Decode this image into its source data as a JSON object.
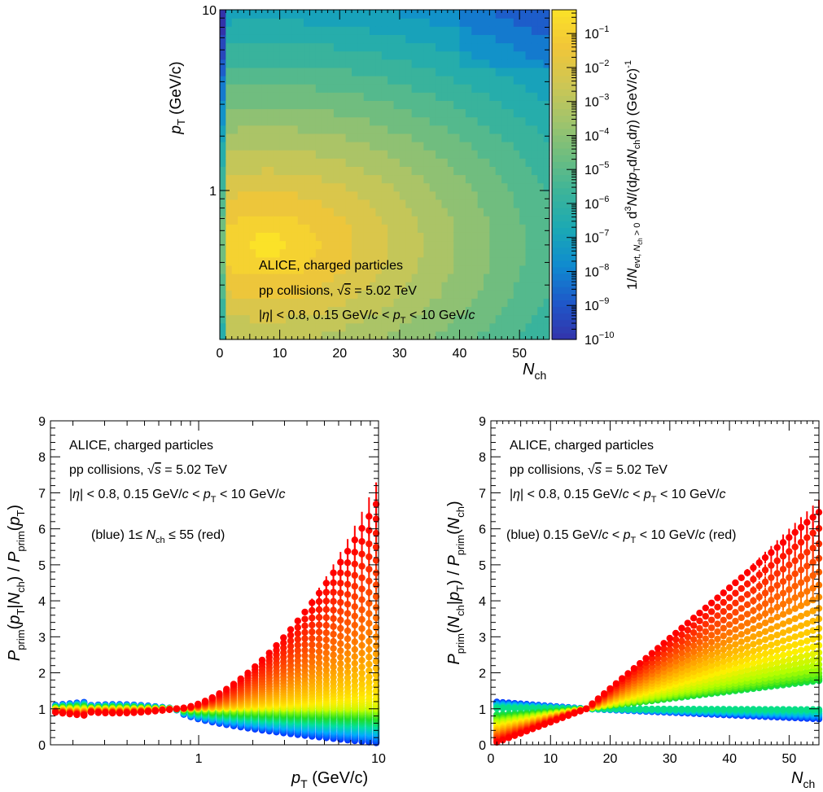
{
  "chart_data": [
    {
      "type": "heatmap",
      "x_label": "N",
      "x_label_sub": "ch",
      "y_label": "p",
      "y_label_sub": "T",
      "y_label_suffix": " (GeV/c)",
      "z_label": "1/N_{evt, N_{ch} > 0} d^{3}N/(dp_{T}dN_{ch}dη) (GeV/c)^{-1}",
      "x_range": [
        0,
        55
      ],
      "y_range": [
        0.15,
        10
      ],
      "y_scale": "log",
      "z_scale": "log",
      "z_range": [
        1e-10,
        0.5
      ],
      "x_ticks": [
        "0",
        "10",
        "20",
        "30",
        "40",
        "50"
      ],
      "y_ticks": [
        "1",
        "10"
      ],
      "z_ticks": [
        {
          "base": "10",
          "exp": "−1"
        },
        {
          "base": "10",
          "exp": "−2"
        },
        {
          "base": "10",
          "exp": "−3"
        },
        {
          "base": "10",
          "exp": "−4"
        },
        {
          "base": "10",
          "exp": "−5"
        },
        {
          "base": "10",
          "exp": "−6"
        },
        {
          "base": "10",
          "exp": "−7"
        },
        {
          "base": "10",
          "exp": "−8"
        },
        {
          "base": "10",
          "exp": "−9"
        },
        {
          "base": "10",
          "exp": "−10"
        }
      ],
      "annotation": [
        "ALICE, charged particles",
        "pp collisions, √s = 5.02 TeV",
        "|η| < 0.8, 0.15 GeV/c < p_T < 10 GeV/c"
      ],
      "colormap": [
        "#3333aa",
        "#1f57c9",
        "#0f8ad0",
        "#1aa8b5",
        "#3bb49a",
        "#6dbd80",
        "#a3c46b",
        "#cfc653",
        "#f1c638",
        "#fbe228"
      ]
    },
    {
      "type": "scatter",
      "x_label": "p",
      "x_label_sub": "T",
      "x_label_suffix": " (GeV/c)",
      "y_label": "P_prim(p_T|N_ch) / P_prim(p_T)",
      "x_range": [
        0.15,
        10
      ],
      "x_scale": "log",
      "y_range": [
        0,
        9
      ],
      "x_ticks": [
        "1",
        "10"
      ],
      "y_ticks": [
        "0",
        "1",
        "2",
        "3",
        "4",
        "5",
        "6",
        "7",
        "8",
        "9"
      ],
      "annotation": [
        "ALICE, charged particles",
        "pp collisions, √s = 5.02 TeV",
        "|η| < 0.8, 0.15 GeV/c < p_T < 10 GeV/c",
        "(blue) 1≤ N_ch ≤ 55 (red)"
      ],
      "series_count": 55,
      "series_param_range": [
        1,
        55
      ],
      "series_colors": [
        "#0033ff",
        "#00aaff",
        "#00e0a0",
        "#22dd22",
        "#aaff00",
        "#ffee00",
        "#ffaa00",
        "#ff5500",
        "#ff0000"
      ]
    },
    {
      "type": "scatter",
      "x_label": "N",
      "x_label_sub": "ch",
      "y_label": "P_prim(N_ch|p_T) / P_prim(N_ch)",
      "x_range": [
        0,
        55
      ],
      "y_range": [
        0,
        9
      ],
      "x_ticks": [
        "0",
        "10",
        "20",
        "30",
        "40",
        "50"
      ],
      "y_ticks": [
        "0",
        "1",
        "2",
        "3",
        "4",
        "5",
        "6",
        "7",
        "8",
        "9"
      ],
      "annotation": [
        "ALICE, charged particles",
        "pp collisions, √s = 5.02 TeV",
        "|η| < 0.8, 0.15 GeV/c < p_T < 10 GeV/c",
        "(blue) 0.15 GeV/c < p_T < 10 GeV/c (red)"
      ],
      "series_count": 30,
      "series_param_range": [
        0.15,
        10
      ],
      "series_colors": [
        "#0033ff",
        "#00aaff",
        "#00e0a0",
        "#22dd22",
        "#aaff00",
        "#ffee00",
        "#ffaa00",
        "#ff5500",
        "#ff0000"
      ]
    }
  ]
}
